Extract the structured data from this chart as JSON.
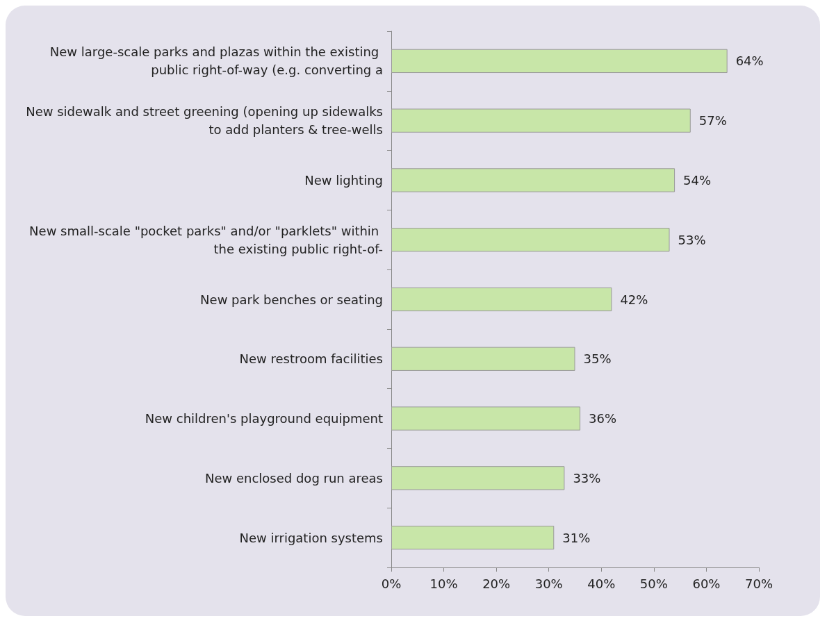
{
  "chart_data": {
    "type": "bar",
    "orientation": "horizontal",
    "categories": [
      "New large-scale parks and plazas within the existing public right-of-way (e.g. converting a",
      "New sidewalk and street greening (opening up sidewalks to add planters & tree-wells",
      "New lighting",
      "New small-scale \"pocket parks\" and/or \"parklets\" within the existing public right-of-",
      "New park benches or seating",
      "New restroom facilities",
      "New children's playground equipment",
      "New enclosed dog run areas",
      "New irrigation systems"
    ],
    "values": [
      64,
      57,
      54,
      53,
      42,
      35,
      36,
      33,
      31
    ],
    "value_labels": [
      "64%",
      "57%",
      "54%",
      "53%",
      "42%",
      "35%",
      "36%",
      "33%",
      "31%"
    ],
    "color": "#c8e6a8",
    "xlim": [
      0,
      70
    ],
    "xticks": [
      {
        "value": 0,
        "label": "0%"
      },
      {
        "value": 10,
        "label": "10%"
      },
      {
        "value": 20,
        "label": "20%"
      },
      {
        "value": 30,
        "label": "30%"
      },
      {
        "value": 40,
        "label": "40%"
      },
      {
        "value": 50,
        "label": "50%"
      },
      {
        "value": 60,
        "label": "60%"
      },
      {
        "value": 70,
        "label": "70%"
      }
    ],
    "grid": false
  }
}
